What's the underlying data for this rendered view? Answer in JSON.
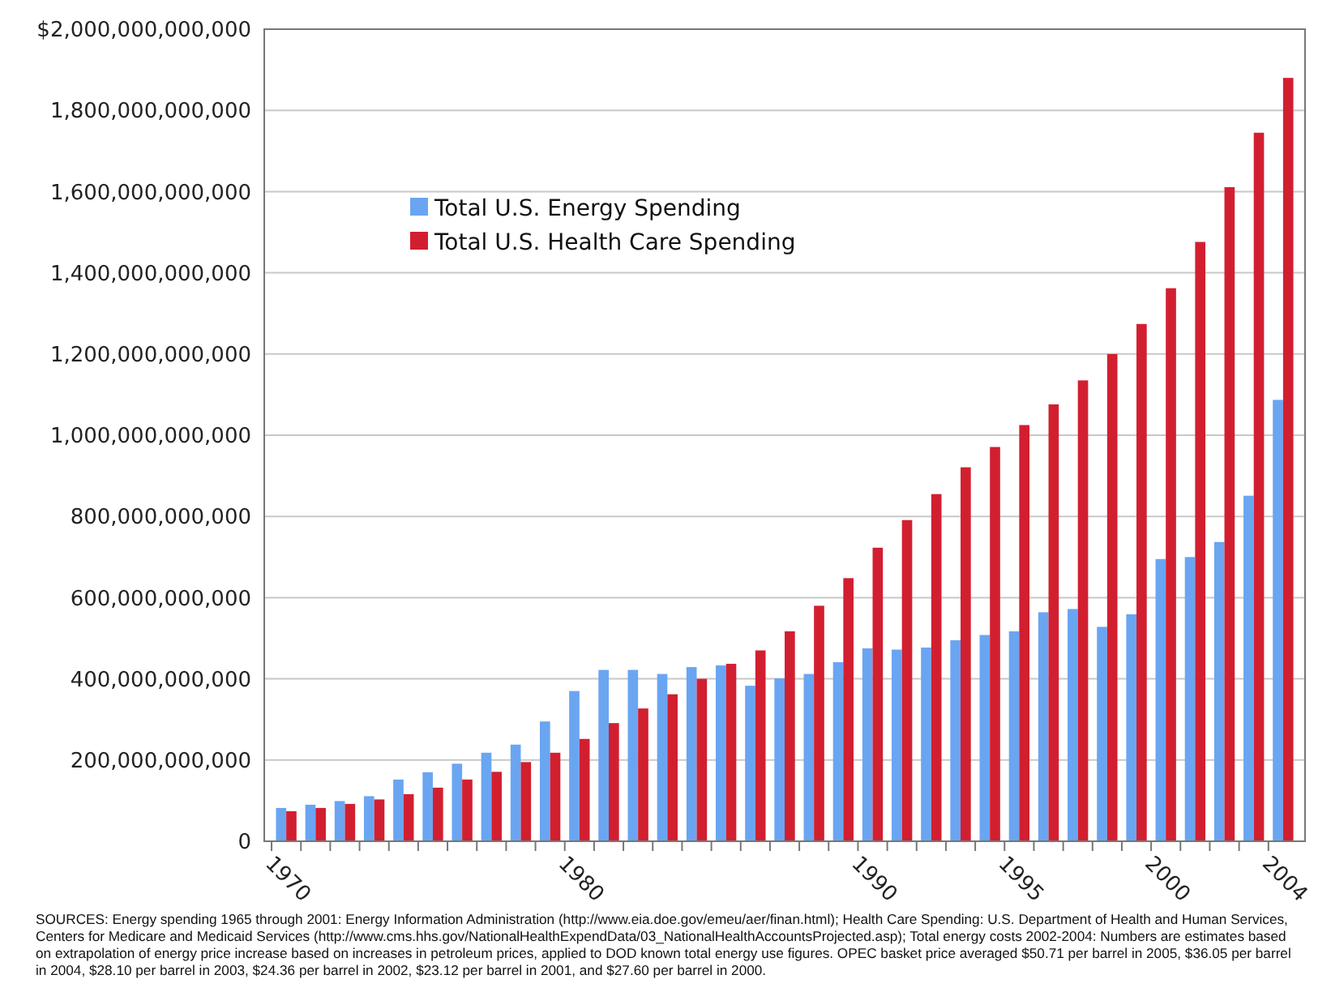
{
  "chart_data": {
    "type": "bar",
    "categories": [
      "1970",
      null,
      null,
      null,
      null,
      null,
      null,
      null,
      null,
      null,
      "1980",
      null,
      null,
      null,
      null,
      null,
      null,
      null,
      null,
      null,
      "1990",
      null,
      null,
      null,
      null,
      "1995",
      null,
      null,
      null,
      null,
      "2000",
      null,
      null,
      null,
      "2004"
    ],
    "series": [
      {
        "name": "Total U.S. Energy Spending",
        "color": "#6aa5f2",
        "values": [
          82000000000,
          90000000000,
          99000000000,
          111000000000,
          152000000000,
          170000000000,
          191000000000,
          218000000000,
          238000000000,
          295000000000,
          370000000000,
          422000000000,
          422000000000,
          412000000000,
          429000000000,
          433000000000,
          383000000000,
          401000000000,
          412000000000,
          441000000000,
          475000000000,
          472000000000,
          477000000000,
          495000000000,
          508000000000,
          517000000000,
          564000000000,
          572000000000,
          528000000000,
          559000000000,
          695000000000,
          700000000000,
          737000000000,
          851000000000,
          1087000000000
        ]
      },
      {
        "name": "Total U.S. Health Care Spending",
        "color": "#d21f30",
        "values": [
          74000000000,
          82000000000,
          92000000000,
          103000000000,
          116000000000,
          132000000000,
          152000000000,
          171000000000,
          195000000000,
          218000000000,
          252000000000,
          291000000000,
          327000000000,
          362000000000,
          400000000000,
          437000000000,
          470000000000,
          517000000000,
          580000000000,
          648000000000,
          723000000000,
          791000000000,
          855000000000,
          921000000000,
          971000000000,
          1025000000000,
          1076000000000,
          1135000000000,
          1200000000000,
          1274000000000,
          1362000000000,
          1476000000000,
          1611000000000,
          1745000000000,
          1880000000000
        ]
      }
    ],
    "ylim": [
      0,
      2000000000000
    ],
    "yticks": [
      {
        "value": 0,
        "label": "0"
      },
      {
        "value": 200000000000,
        "label": "200,000,000,000"
      },
      {
        "value": 400000000000,
        "label": "400,000,000,000"
      },
      {
        "value": 600000000000,
        "label": "600,000,000,000"
      },
      {
        "value": 800000000000,
        "label": "800,000,000,000"
      },
      {
        "value": 1000000000000,
        "label": "1,000,000,000,000"
      },
      {
        "value": 1200000000000,
        "label": "1,200,000,000,000"
      },
      {
        "value": 1400000000000,
        "label": "1,400,000,000,000"
      },
      {
        "value": 1600000000000,
        "label": "1,600,000,000,000"
      },
      {
        "value": 1800000000000,
        "label": "1,800,000,000,000"
      },
      {
        "value": 2000000000000,
        "label": "$2,000,000,000,000"
      }
    ],
    "grid": "y",
    "legend": "top left",
    "annotations": [
      "SOURCES: Energy spending 1965 through 2001: Energy Information Administration (http://www.eia.doe.gov/emeu/aer/finan.html); Health Care Spending: U.S. Department of Health and Human Services, Centers for Medicare and Medicaid Services (http://www.cms.hhs.gov/NationalHealthExpendData/03_NationalHealthAccountsProjected.asp); Total energy costs 2002-2004: Numbers are estimates based on extrapolation of energy price increase based on increases in petroleum prices, applied to DOD known total energy use figures. OPEC basket price averaged $50.71 per barrel in 2005, $36.05 per barrel in 2004, $28.10 per barrel in 2003, $24.36 per barrel in 2002, $23.12 per barrel in 2001, and $27.60 per barrel in 2000."
    ]
  }
}
